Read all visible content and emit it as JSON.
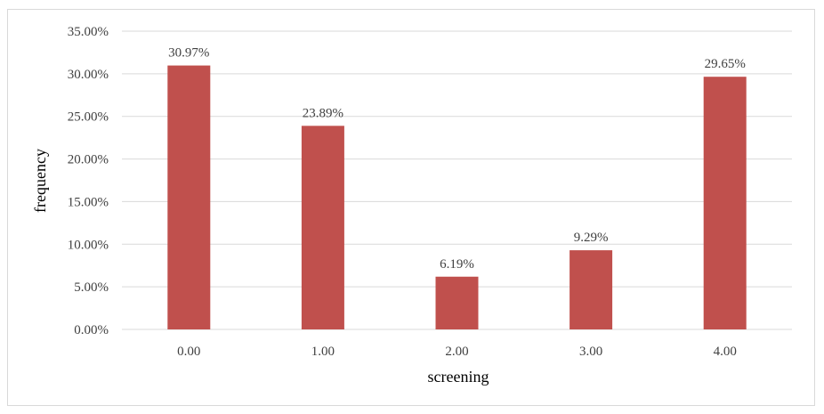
{
  "chart_data": {
    "type": "bar",
    "categories": [
      "0.00",
      "1.00",
      "2.00",
      "3.00",
      "4.00"
    ],
    "values": [
      30.97,
      23.89,
      6.19,
      9.29,
      29.65
    ],
    "data_labels": [
      "30.97%",
      "23.89%",
      "6.19%",
      "9.29%",
      "29.65%"
    ],
    "xlabel": "screening",
    "ylabel": "frequency",
    "ylim": [
      0,
      35
    ],
    "ytick_values": [
      0,
      5,
      10,
      15,
      20,
      25,
      30,
      35
    ],
    "ytick_labels": [
      "0.00%",
      "5.00%",
      "10.00%",
      "15.00%",
      "20.00%",
      "25.00%",
      "30.00%",
      "35.00%"
    ],
    "grid": true,
    "legend": "none",
    "colors": {
      "bar": "#c0504d",
      "grid": "#d9d9d9"
    }
  }
}
